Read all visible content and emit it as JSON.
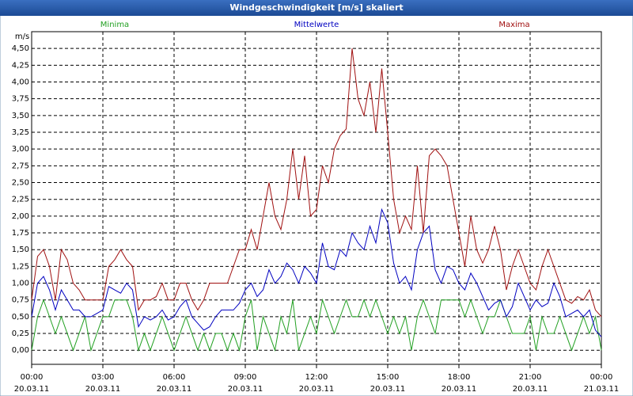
{
  "chart_data": {
    "type": "line",
    "title": "Windgeschwindigkeit [m/s] skaliert",
    "y_label": "m/s",
    "legend": "top",
    "grid": true,
    "x": [
      "20.03.11 00:00",
      "20.03.11 00:15",
      "20.03.11 00:30",
      "20.03.11 00:45",
      "20.03.11 01:00",
      "20.03.11 01:15",
      "20.03.11 01:30",
      "20.03.11 01:45",
      "20.03.11 02:00",
      "20.03.11 02:15",
      "20.03.11 02:30",
      "20.03.11 02:45",
      "20.03.11 03:00",
      "20.03.11 03:15",
      "20.03.11 03:30",
      "20.03.11 03:45",
      "20.03.11 04:00",
      "20.03.11 04:15",
      "20.03.11 04:30",
      "20.03.11 04:45",
      "20.03.11 05:00",
      "20.03.11 05:15",
      "20.03.11 05:30",
      "20.03.11 05:45",
      "20.03.11 06:00",
      "20.03.11 06:15",
      "20.03.11 06:30",
      "20.03.11 06:45",
      "20.03.11 07:00",
      "20.03.11 07:15",
      "20.03.11 07:30",
      "20.03.11 07:45",
      "20.03.11 08:00",
      "20.03.11 08:15",
      "20.03.11 08:30",
      "20.03.11 08:45",
      "20.03.11 09:00",
      "20.03.11 09:15",
      "20.03.11 09:30",
      "20.03.11 09:45",
      "20.03.11 10:00",
      "20.03.11 10:15",
      "20.03.11 10:30",
      "20.03.11 10:45",
      "20.03.11 11:00",
      "20.03.11 11:15",
      "20.03.11 11:30",
      "20.03.11 11:45",
      "20.03.11 12:00",
      "20.03.11 12:15",
      "20.03.11 12:30",
      "20.03.11 12:45",
      "20.03.11 13:00",
      "20.03.11 13:15",
      "20.03.11 13:30",
      "20.03.11 13:45",
      "20.03.11 14:00",
      "20.03.11 14:15",
      "20.03.11 14:30",
      "20.03.11 14:45",
      "20.03.11 15:00",
      "20.03.11 15:15",
      "20.03.11 15:30",
      "20.03.11 15:45",
      "20.03.11 16:00",
      "20.03.11 16:15",
      "20.03.11 16:30",
      "20.03.11 16:45",
      "20.03.11 17:00",
      "20.03.11 17:15",
      "20.03.11 17:30",
      "20.03.11 17:45",
      "20.03.11 18:00",
      "20.03.11 18:15",
      "20.03.11 18:30",
      "20.03.11 18:45",
      "20.03.11 19:00",
      "20.03.11 19:15",
      "20.03.11 19:30",
      "20.03.11 19:45",
      "20.03.11 20:00",
      "20.03.11 20:15",
      "20.03.11 20:30",
      "20.03.11 20:45",
      "20.03.11 21:00",
      "20.03.11 21:15",
      "20.03.11 21:30",
      "20.03.11 21:45",
      "20.03.11 22:00",
      "20.03.11 22:15",
      "20.03.11 22:30",
      "20.03.11 22:45",
      "20.03.11 23:00",
      "20.03.11 23:15",
      "20.03.11 23:30",
      "20.03.11 23:45",
      "21.03.11 00:00"
    ],
    "series": [
      {
        "name": "Minima",
        "color": "#22a022",
        "values": [
          0.0,
          0.5,
          0.75,
          0.5,
          0.25,
          0.5,
          0.25,
          0.0,
          0.25,
          0.5,
          0.0,
          0.25,
          0.5,
          0.5,
          0.75,
          0.75,
          0.75,
          0.5,
          0.0,
          0.25,
          0.0,
          0.25,
          0.5,
          0.25,
          0.0,
          0.25,
          0.5,
          0.25,
          0.0,
          0.25,
          0.0,
          0.25,
          0.25,
          0.0,
          0.25,
          0.0,
          0.5,
          0.75,
          0.0,
          0.5,
          0.25,
          0.0,
          0.5,
          0.25,
          0.75,
          0.0,
          0.25,
          0.5,
          0.25,
          0.75,
          0.5,
          0.25,
          0.5,
          0.75,
          0.5,
          0.5,
          0.75,
          0.5,
          0.75,
          0.5,
          0.25,
          0.5,
          0.25,
          0.5,
          0.0,
          0.5,
          0.75,
          0.5,
          0.25,
          0.75,
          0.75,
          0.75,
          0.75,
          0.5,
          0.75,
          0.5,
          0.25,
          0.5,
          0.5,
          0.75,
          0.5,
          0.25,
          0.25,
          0.25,
          0.5,
          0.0,
          0.5,
          0.25,
          0.25,
          0.5,
          0.25,
          0.0,
          0.25,
          0.5,
          0.25,
          0.5,
          0.0
        ]
      },
      {
        "name": "Mittelwerte",
        "color": "#0000c0",
        "values": [
          0.5,
          1.0,
          1.1,
          0.9,
          0.6,
          0.9,
          0.75,
          0.6,
          0.6,
          0.5,
          0.5,
          0.55,
          0.6,
          0.95,
          0.9,
          0.85,
          1.0,
          0.9,
          0.35,
          0.5,
          0.45,
          0.5,
          0.6,
          0.45,
          0.5,
          0.65,
          0.75,
          0.5,
          0.4,
          0.3,
          0.35,
          0.5,
          0.6,
          0.6,
          0.6,
          0.7,
          0.9,
          1.0,
          0.8,
          0.9,
          1.2,
          1.0,
          1.1,
          1.3,
          1.2,
          1.0,
          1.25,
          1.15,
          1.0,
          1.6,
          1.25,
          1.2,
          1.5,
          1.4,
          1.75,
          1.6,
          1.5,
          1.85,
          1.6,
          2.1,
          1.9,
          1.3,
          1.0,
          1.1,
          0.9,
          1.5,
          1.75,
          1.85,
          1.2,
          1.0,
          1.25,
          1.2,
          1.0,
          0.9,
          1.15,
          1.0,
          0.8,
          0.6,
          0.7,
          0.75,
          0.5,
          0.65,
          1.0,
          0.8,
          0.6,
          0.75,
          0.65,
          0.7,
          1.0,
          0.8,
          0.5,
          0.55,
          0.6,
          0.5,
          0.6,
          0.3,
          0.2
        ]
      },
      {
        "name": "Maxima",
        "color": "#a01010",
        "values": [
          0.75,
          1.4,
          1.5,
          1.25,
          0.75,
          1.5,
          1.35,
          1.0,
          0.9,
          0.75,
          0.75,
          0.75,
          0.75,
          1.25,
          1.35,
          1.5,
          1.35,
          1.25,
          0.6,
          0.75,
          0.75,
          0.8,
          1.0,
          0.75,
          0.75,
          1.0,
          1.0,
          0.75,
          0.6,
          0.75,
          1.0,
          1.0,
          1.0,
          1.0,
          1.25,
          1.5,
          1.5,
          1.8,
          1.5,
          2.0,
          2.5,
          2.0,
          1.8,
          2.25,
          3.0,
          2.25,
          2.9,
          2.0,
          2.1,
          2.75,
          2.5,
          3.0,
          3.2,
          3.3,
          4.5,
          3.75,
          3.5,
          4.0,
          3.25,
          4.2,
          3.25,
          2.25,
          1.75,
          2.0,
          1.8,
          2.75,
          1.75,
          2.9,
          3.0,
          2.9,
          2.75,
          2.25,
          1.75,
          1.25,
          2.0,
          1.5,
          1.3,
          1.5,
          1.85,
          1.5,
          0.9,
          1.25,
          1.5,
          1.25,
          1.0,
          0.9,
          1.25,
          1.5,
          1.25,
          1.0,
          0.75,
          0.7,
          0.8,
          0.75,
          0.9,
          0.6,
          0.5
        ]
      }
    ],
    "xlim": [
      "20.03.11 00:00",
      "21.03.11 00:00"
    ],
    "xticks": [
      {
        "value": "20.03.11 00:00",
        "label": "00:00"
      },
      {
        "value": "20.03.11 03:00",
        "label": "03:00"
      },
      {
        "value": "20.03.11 06:00",
        "label": "06:00"
      },
      {
        "value": "20.03.11 09:00",
        "label": "09:00"
      },
      {
        "value": "20.03.11 12:00",
        "label": "12:00"
      },
      {
        "value": "20.03.11 15:00",
        "label": "15:00"
      },
      {
        "value": "20.03.11 18:00",
        "label": "18:00"
      },
      {
        "value": "20.03.11 21:00",
        "label": "21:00"
      },
      {
        "value": "21.03.11 00:00",
        "label": "00:00"
      }
    ],
    "xtick_dates": [
      "20.03.11",
      "20.03.11",
      "20.03.11",
      "20.03.11",
      "20.03.11",
      "20.03.11",
      "20.03.11",
      "20.03.11",
      "21.03.11"
    ],
    "ylim": [
      -0.21,
      4.75
    ],
    "yticks": [
      {
        "value": 0,
        "label": "0,00"
      },
      {
        "value": 0.25,
        "label": "0,25"
      },
      {
        "value": 0.5,
        "label": "0,50"
      },
      {
        "value": 0.75,
        "label": "0,75"
      },
      {
        "value": 1,
        "label": "1,00"
      },
      {
        "value": 1.25,
        "label": "1,25"
      },
      {
        "value": 1.5,
        "label": "1,50"
      },
      {
        "value": 1.75,
        "label": "1,75"
      },
      {
        "value": 2,
        "label": "2,00"
      },
      {
        "value": 2.25,
        "label": "2,25"
      },
      {
        "value": 2.5,
        "label": "2,50"
      },
      {
        "value": 2.75,
        "label": "2,75"
      },
      {
        "value": 3,
        "label": "3,00"
      },
      {
        "value": 3.25,
        "label": "3,25"
      },
      {
        "value": 3.5,
        "label": "3,50"
      },
      {
        "value": 3.75,
        "label": "3,75"
      },
      {
        "value": 4,
        "label": "4,00"
      },
      {
        "value": 4.25,
        "label": "4,25"
      },
      {
        "value": 4.5,
        "label": "4,50"
      }
    ]
  }
}
